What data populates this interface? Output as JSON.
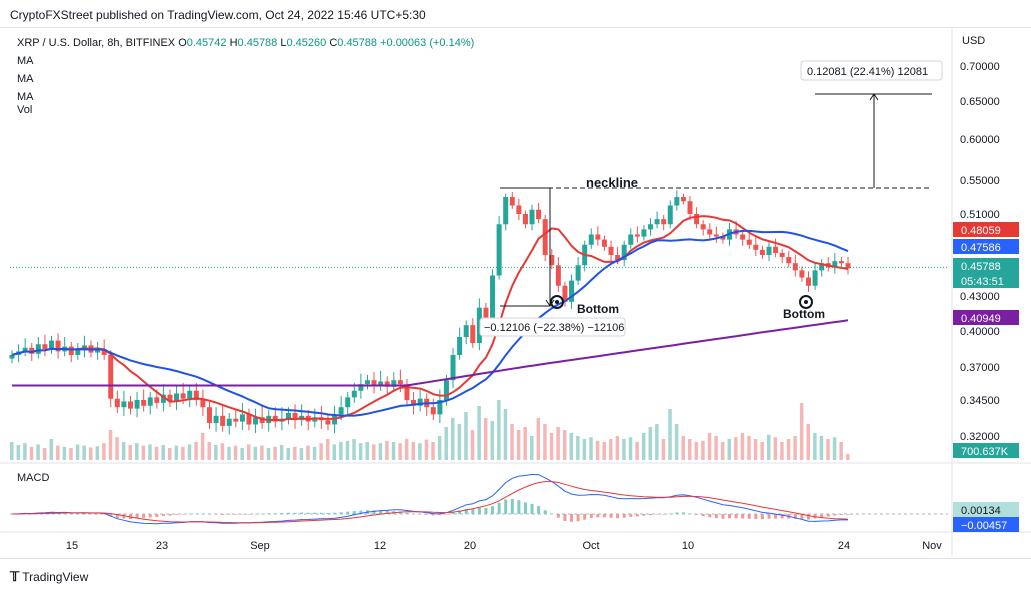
{
  "header": {
    "text": "CryptoFXStreet published on TradingView.com, Oct 24, 2022 15:46 UTC+5:30"
  },
  "legend": {
    "symbol": "XRP / U.S. Dollar, 8h, BITFINEX",
    "o_label": "O",
    "o": "0.45742",
    "h_label": "H",
    "h": "0.45788",
    "l_label": "L",
    "l": "0.45260",
    "c_label": "C",
    "c": "0.45788",
    "change": "+0.00063 (+0.14%)",
    "ma1": "MA",
    "ma2": "MA",
    "ma3": "MA",
    "vol": "Vol"
  },
  "macd_label": "MACD",
  "currency": "USD",
  "footer": {
    "logo_text": "TradingView"
  },
  "colors": {
    "up": "#26a69a",
    "down": "#ef5350",
    "ma_fast": "#e53935",
    "ma_mid": "#1e53e5",
    "ma_slow": "#7b1fa2",
    "macd_line": "#2962ff",
    "signal_line": "#e53935"
  },
  "chart_data": {
    "type": "candlestick",
    "x_ticks": [
      "15",
      "23",
      "Sep",
      "12",
      "20",
      "Oct",
      "10",
      "24",
      "Nov"
    ],
    "y_ticks": [
      "0.70000",
      "0.65000",
      "0.60000",
      "0.55000",
      "0.51000",
      "0.43000",
      "0.40000",
      "0.37000",
      "0.34500",
      "0.32000"
    ],
    "price_labels": [
      {
        "name": "ma-fast",
        "value": "0.48059",
        "color": "#e53935"
      },
      {
        "name": "ma-mid",
        "value": "0.47586",
        "color": "#2962ff"
      },
      {
        "name": "last-price",
        "value": "0.45788",
        "color": "#26a69a"
      },
      {
        "name": "countdown",
        "value": "05:43:51",
        "color": "#26a69a"
      },
      {
        "name": "ma-slow",
        "value": "0.40949",
        "color": "#7b1fa2"
      },
      {
        "name": "volume",
        "value": "700.637K",
        "color": "#26a69a"
      }
    ],
    "macd_labels": [
      {
        "name": "macd-hist",
        "value": "0.00134",
        "color": "#b2dfdb"
      },
      {
        "name": "macd-value",
        "value": "−0.00457",
        "color": "#2962ff"
      }
    ],
    "annotations": {
      "neckline": "neckline",
      "bottom1": "Bottom",
      "bottom2": "Bottom",
      "measure_down": "−0.12106 (−22.38%) −12106",
      "measure_up": "0.12081 (22.41%) 12081"
    },
    "closes": [
      0.38,
      0.383,
      0.386,
      0.381,
      0.389,
      0.385,
      0.392,
      0.383,
      0.387,
      0.38,
      0.384,
      0.388,
      0.382,
      0.385,
      0.38,
      0.346,
      0.34,
      0.344,
      0.339,
      0.345,
      0.341,
      0.347,
      0.343,
      0.349,
      0.344,
      0.35,
      0.346,
      0.352,
      0.345,
      0.34,
      0.329,
      0.334,
      0.327,
      0.332,
      0.33,
      0.335,
      0.328,
      0.333,
      0.329,
      0.334,
      0.33,
      0.332,
      0.336,
      0.331,
      0.334,
      0.33,
      0.333,
      0.331,
      0.328,
      0.335,
      0.34,
      0.347,
      0.352,
      0.357,
      0.36,
      0.356,
      0.359,
      0.355,
      0.36,
      0.357,
      0.345,
      0.341,
      0.346,
      0.34,
      0.335,
      0.345,
      0.36,
      0.38,
      0.395,
      0.405,
      0.39,
      0.42,
      0.41,
      0.45,
      0.5,
      0.53,
      0.52,
      0.51,
      0.5,
      0.515,
      0.505,
      0.47,
      0.46,
      0.44,
      0.425,
      0.445,
      0.46,
      0.48,
      0.49,
      0.485,
      0.478,
      0.47,
      0.465,
      0.48,
      0.49,
      0.488,
      0.495,
      0.5,
      0.505,
      0.5,
      0.52,
      0.53,
      0.525,
      0.51,
      0.5,
      0.495,
      0.49,
      0.488,
      0.485,
      0.495,
      0.49,
      0.485,
      0.48,
      0.475,
      0.47,
      0.478,
      0.472,
      0.468,
      0.462,
      0.455,
      0.448,
      0.44,
      0.455,
      0.462,
      0.458,
      0.464,
      0.462,
      0.457
    ],
    "volumes": [
      0.3,
      0.25,
      0.28,
      0.22,
      0.26,
      0.2,
      0.35,
      0.24,
      0.22,
      0.2,
      0.26,
      0.24,
      0.21,
      0.23,
      0.28,
      0.5,
      0.38,
      0.3,
      0.25,
      0.28,
      0.24,
      0.26,
      0.22,
      0.25,
      0.2,
      0.24,
      0.22,
      0.26,
      0.3,
      0.45,
      0.3,
      0.25,
      0.28,
      0.22,
      0.24,
      0.2,
      0.26,
      0.22,
      0.24,
      0.2,
      0.22,
      0.25,
      0.2,
      0.22,
      0.2,
      0.24,
      0.22,
      0.28,
      0.35,
      0.26,
      0.3,
      0.32,
      0.35,
      0.28,
      0.3,
      0.26,
      0.28,
      0.32,
      0.3,
      0.28,
      0.35,
      0.3,
      0.28,
      0.34,
      0.3,
      0.4,
      0.55,
      0.7,
      0.6,
      0.8,
      0.5,
      0.9,
      0.7,
      0.65,
      1.0,
      0.85,
      0.6,
      0.5,
      0.55,
      0.4,
      0.7,
      0.6,
      0.45,
      0.55,
      0.5,
      0.45,
      0.4,
      0.35,
      0.38,
      0.32,
      0.3,
      0.35,
      0.4,
      0.35,
      0.38,
      0.3,
      0.45,
      0.55,
      0.6,
      0.35,
      0.85,
      0.6,
      0.4,
      0.35,
      0.3,
      0.32,
      0.45,
      0.4,
      0.3,
      0.35,
      0.38,
      0.45,
      0.4,
      0.35,
      0.3,
      0.42,
      0.38,
      0.3,
      0.35,
      0.4,
      0.95,
      0.6,
      0.45,
      0.4,
      0.35,
      0.38,
      0.3,
      0.1
    ]
  }
}
